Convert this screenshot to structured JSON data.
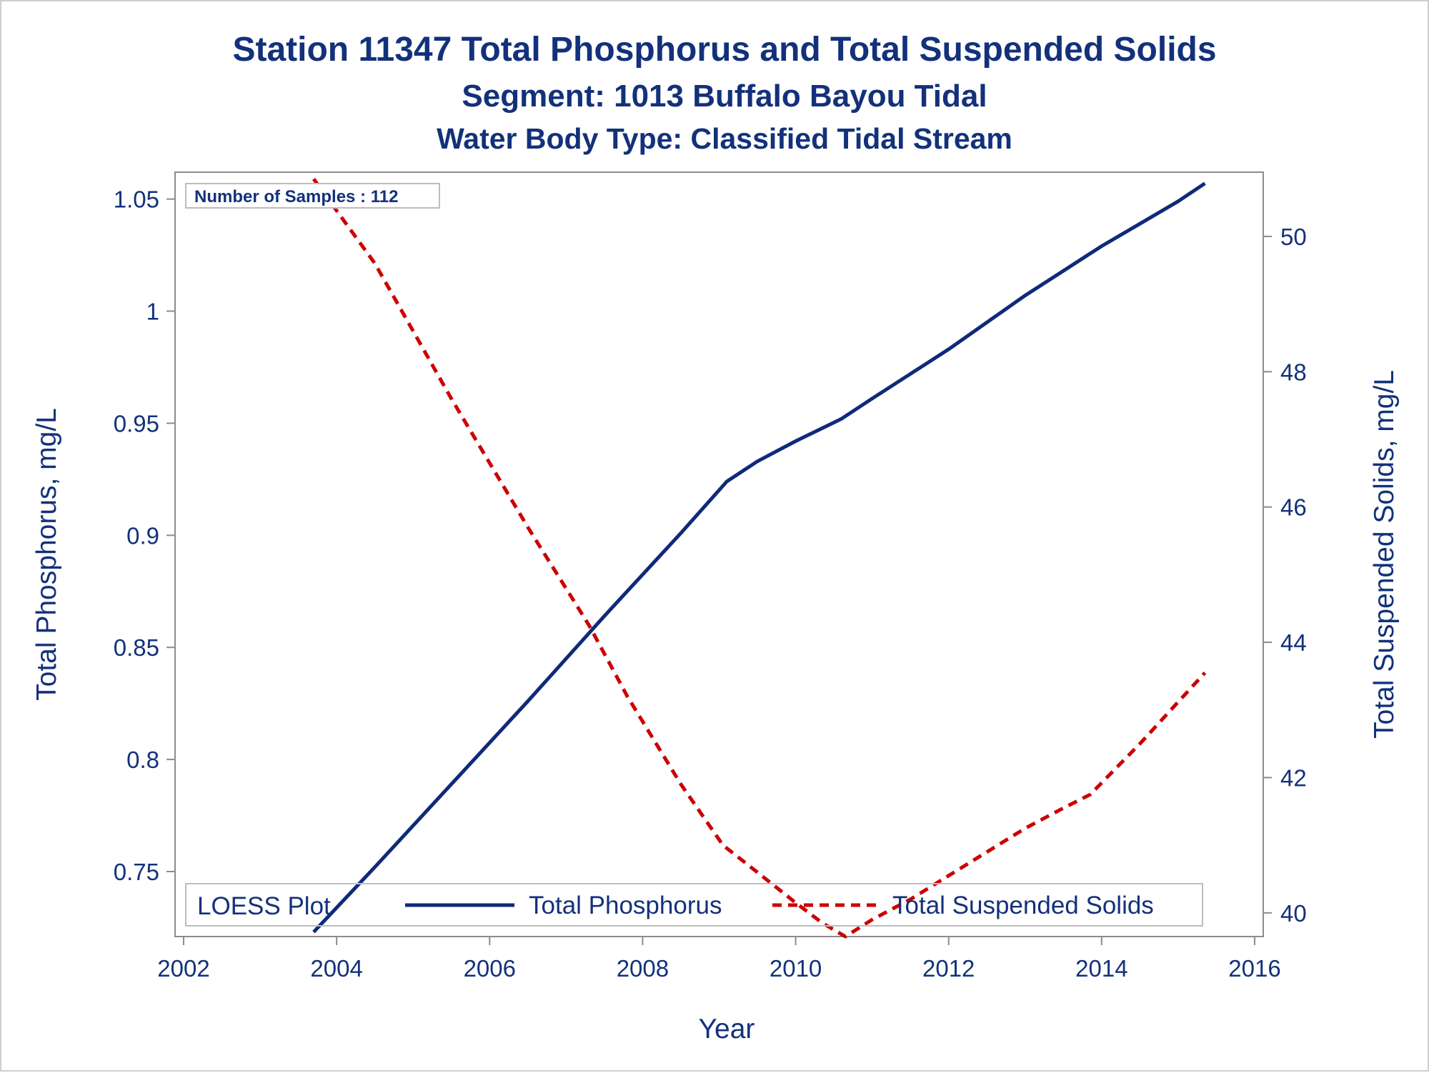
{
  "colors": {
    "text": "#13317b",
    "phosphorus_line": "#0f2a7a",
    "tss_line": "#cc0000",
    "axis": "#8c8c8c",
    "background": "#ffffff"
  },
  "chart_data": {
    "type": "line",
    "title": "Station 11347  Total Phosphorus and Total Suspended Solids",
    "subtitle": "Segment: 1013  Buffalo Bayou Tidal",
    "subtitle2": "Water Body Type: Classified Tidal Stream",
    "xlabel": "Year",
    "ylabel": "Total Phosphorus, mg/L",
    "y2label": "Total Suspended Solids, mg/L",
    "xlim": [
      2002,
      2016
    ],
    "ylim": [
      0.721,
      1.062
    ],
    "y2lim": [
      39.65,
      50.95
    ],
    "x_ticks": [
      "2002",
      "2004",
      "2006",
      "2008",
      "2010",
      "2012",
      "2014",
      "2016"
    ],
    "y_ticks": [
      "0.75",
      "0.8",
      "0.85",
      "0.9",
      "0.95",
      "1",
      "1.05"
    ],
    "y2_ticks": [
      "40",
      "42",
      "44",
      "46",
      "48",
      "50"
    ],
    "annotation": "Number of Samples : 112",
    "legend": {
      "title": "LOESS Plot",
      "position": "bottom-inside",
      "entries": [
        "Total Phosphorus",
        "Total Suspended Solids"
      ]
    },
    "grid": false,
    "series": [
      {
        "name": "Total Phosphorus",
        "axis": "left",
        "style": "solid",
        "x": [
          2003.7,
          2004.5,
          2005.5,
          2006.5,
          2007.5,
          2008.5,
          2009.1,
          2009.5,
          2010.0,
          2010.6,
          2011.0,
          2011.5,
          2012.0,
          2012.5,
          2013.0,
          2013.5,
          2014.0,
          2014.5,
          2015.0,
          2015.35
        ],
        "y": [
          0.723,
          0.752,
          0.789,
          0.826,
          0.864,
          0.901,
          0.924,
          0.933,
          0.942,
          0.952,
          0.961,
          0.972,
          0.983,
          0.995,
          1.007,
          1.018,
          1.029,
          1.039,
          1.049,
          1.057
        ]
      },
      {
        "name": "Total Suspended Solids",
        "axis": "right",
        "style": "dashed",
        "x": [
          2003.7,
          2004.5,
          2005.5,
          2006.5,
          2007.3,
          2007.8,
          2008.5,
          2009.05,
          2009.5,
          2010.0,
          2010.35,
          2010.65,
          2011.0,
          2011.5,
          2012.0,
          2012.5,
          2013.0,
          2013.5,
          2013.85,
          2014.5,
          2015.35
        ],
        "y": [
          50.85,
          49.6,
          47.6,
          45.7,
          44.25,
          43.2,
          41.9,
          41.0,
          40.6,
          40.15,
          39.85,
          39.65,
          39.9,
          40.2,
          40.55,
          40.9,
          41.25,
          41.55,
          41.75,
          42.5,
          43.55
        ]
      }
    ]
  }
}
